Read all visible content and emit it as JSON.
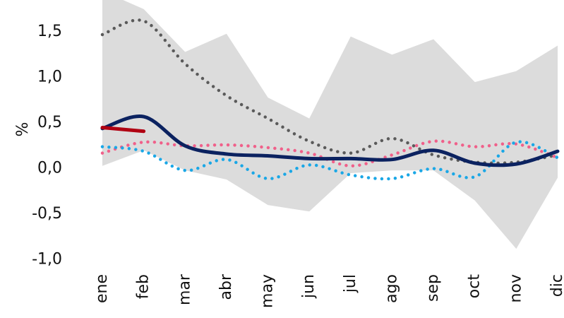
{
  "chart_data": {
    "type": "line",
    "ylabel": "%",
    "categories": [
      "ene",
      "feb",
      "mar",
      "abr",
      "may",
      "jun",
      "jul",
      "ago",
      "sep",
      "oct",
      "nov",
      "dic"
    ],
    "ylim": [
      -1.05,
      1.85
    ],
    "yticks": [
      {
        "value": -1.0,
        "label": "-1,0"
      },
      {
        "value": -0.5,
        "label": "-0,5"
      },
      {
        "value": 0.0,
        "label": "0,0"
      },
      {
        "value": 0.5,
        "label": "0,5"
      },
      {
        "value": 1.0,
        "label": "1,0"
      },
      {
        "value": 1.5,
        "label": "1,5"
      }
    ],
    "band": {
      "color": "#dcdcdc",
      "upper": [
        1.95,
        1.75,
        1.28,
        1.48,
        0.78,
        0.55,
        1.45,
        1.25,
        1.42,
        0.95,
        1.07,
        1.35
      ],
      "lower": [
        0.03,
        0.2,
        -0.02,
        -0.12,
        -0.4,
        -0.47,
        -0.05,
        -0.02,
        -0.02,
        -0.35,
        -0.88,
        -0.1
      ]
    },
    "series": [
      {
        "color": "#5a5a5a",
        "style": "dotted",
        "values": [
          1.47,
          1.62,
          1.15,
          0.8,
          0.55,
          0.3,
          0.17,
          0.33,
          0.15,
          0.07,
          0.07,
          0.15
        ]
      },
      {
        "color": "#f0608a",
        "style": "dotted",
        "values": [
          0.17,
          0.29,
          0.25,
          0.26,
          0.23,
          0.17,
          0.03,
          0.15,
          0.3,
          0.24,
          0.27,
          0.12
        ]
      },
      {
        "color": "#1aa7e6",
        "style": "dotted",
        "values": [
          0.24,
          0.19,
          -0.02,
          0.1,
          -0.11,
          0.04,
          -0.07,
          -0.11,
          0.0,
          -0.09,
          0.29,
          0.12
        ]
      },
      {
        "color": "#0b2260",
        "style": "solid",
        "values": [
          0.44,
          0.57,
          0.25,
          0.16,
          0.14,
          0.11,
          0.11,
          0.1,
          0.2,
          0.06,
          0.05,
          0.19
        ]
      },
      {
        "color": "#b00012",
        "style": "solid",
        "values": [
          0.45,
          0.41,
          null,
          null,
          null,
          null,
          null,
          null,
          null,
          null,
          null,
          null
        ]
      }
    ]
  }
}
